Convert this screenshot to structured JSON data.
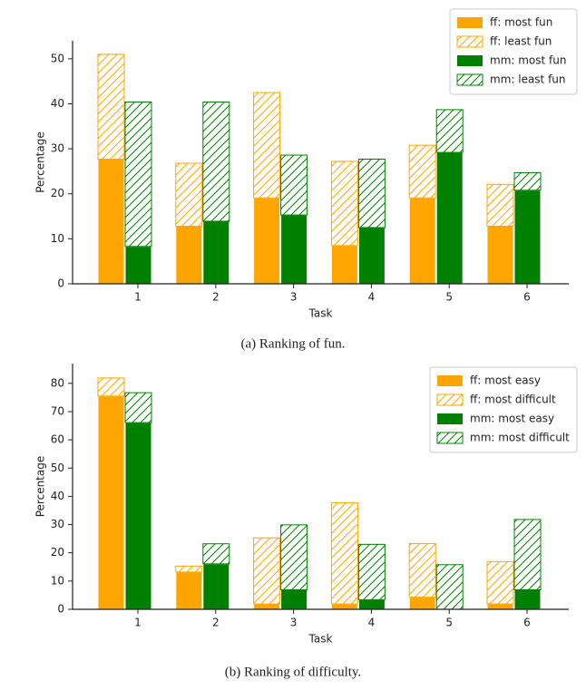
{
  "chart_data": [
    {
      "type": "bar",
      "caption": "(a)  Ranking of fun.",
      "xlabel": "Task",
      "ylabel": "Percentage",
      "categories": [
        "1",
        "2",
        "3",
        "4",
        "5",
        "6"
      ],
      "series": [
        {
          "name": "ff: most fun",
          "color": "#ffa500",
          "hatch": false,
          "values": [
            27.7,
            12.8,
            19.1,
            8.5,
            19.1,
            12.8
          ]
        },
        {
          "name": "ff: least fun",
          "color": "#ffa500",
          "hatch": true,
          "values": [
            23.3,
            14.0,
            23.4,
            18.7,
            11.7,
            9.3
          ]
        },
        {
          "name": "mm: most fun",
          "color": "#008000",
          "hatch": false,
          "values": [
            8.3,
            13.9,
            15.3,
            12.5,
            29.2,
            20.8
          ]
        },
        {
          "name": "mm: least fun",
          "color": "#008000",
          "hatch": true,
          "values": [
            32.1,
            26.5,
            13.3,
            15.2,
            9.5,
            3.9
          ]
        }
      ],
      "ylim": [
        0,
        54
      ],
      "yticks": [
        0,
        10,
        20,
        30,
        40,
        50
      ],
      "legend": "upper right"
    },
    {
      "type": "bar",
      "caption": "(b)  Ranking of difficulty.",
      "xlabel": "Task",
      "ylabel": "Percentage",
      "categories": [
        "1",
        "2",
        "3",
        "4",
        "5",
        "6"
      ],
      "series": [
        {
          "name": "ff: most easy",
          "color": "#ffa500",
          "hatch": false,
          "values": [
            75.5,
            13.2,
            1.9,
            1.9,
            4.3,
            1.9
          ]
        },
        {
          "name": "ff: most difficult",
          "color": "#ffa500",
          "hatch": true,
          "values": [
            6.4,
            2.1,
            23.4,
            35.8,
            19.0,
            15.0
          ]
        },
        {
          "name": "mm: most easy",
          "color": "#008000",
          "hatch": false,
          "values": [
            66.1,
            16.1,
            6.9,
            3.4,
            0,
            6.9
          ]
        },
        {
          "name": "mm: most difficult",
          "color": "#008000",
          "hatch": true,
          "values": [
            10.6,
            7.1,
            23.0,
            19.6,
            15.8,
            24.9
          ]
        }
      ],
      "ylim": [
        0,
        87
      ],
      "yticks": [
        0,
        10,
        20,
        30,
        40,
        50,
        60,
        70,
        80
      ],
      "legend": "upper right"
    }
  ]
}
